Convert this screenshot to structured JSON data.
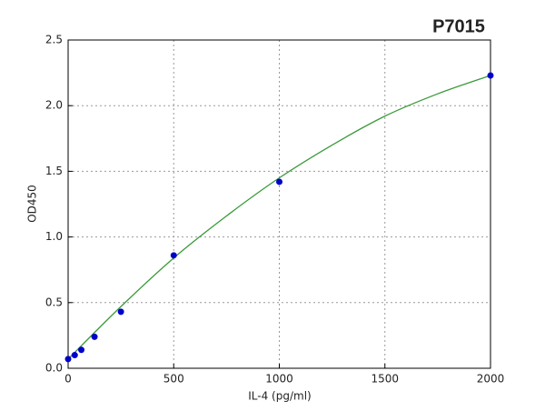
{
  "chart_data": {
    "type": "scatter",
    "title": "P7015",
    "xlabel": "IL-4 (pg/ml)",
    "ylabel": "OD450",
    "xlim": [
      0,
      2000
    ],
    "ylim": [
      0,
      2.5
    ],
    "xticks": [
      0,
      500,
      1000,
      1500,
      2000
    ],
    "yticks": [
      {
        "value": 0,
        "label": "0.0"
      },
      0.5,
      {
        "value": 1,
        "label": "1.0"
      },
      1.5,
      {
        "value": 2,
        "label": "2.0"
      },
      2.5
    ],
    "grid": true,
    "series": [
      {
        "type": "line",
        "color": "#3a9a3a",
        "x": [
          0,
          250,
          500,
          750,
          1000,
          1250,
          1500,
          1750,
          2000
        ],
        "values": [
          0.07,
          0.47,
          0.84,
          1.16,
          1.45,
          1.7,
          1.92,
          2.09,
          2.23
        ]
      },
      {
        "type": "scatter",
        "color": "#0000cc",
        "x": [
          0,
          31.25,
          62.5,
          125,
          250,
          500,
          1000,
          2000
        ],
        "values": [
          0.07,
          0.1,
          0.14,
          0.24,
          0.43,
          0.86,
          1.42,
          2.23
        ]
      }
    ]
  }
}
